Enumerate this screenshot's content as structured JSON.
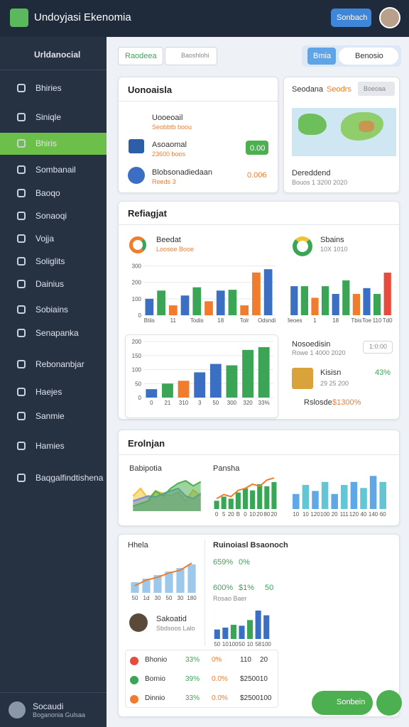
{
  "header": {
    "title": "Undoyjasi Ekenomia",
    "button": "Sonbach"
  },
  "sidebar": {
    "brand": "Urldanocial",
    "items": [
      "Bhiries",
      "Siniqle",
      "Bhiris",
      "Sombanail",
      "Baoqo",
      "Sonaoqi",
      "Vojja",
      "Soliglits",
      "Dainius",
      "Sobiains",
      "Senapanka",
      "Rebonanbjar",
      "Haejes",
      "Sanmie",
      "Hamies",
      "Baqgalfindtishena"
    ],
    "active": 2,
    "user": {
      "name": "Socaudi",
      "role": "Boganonia Gulsaa"
    }
  },
  "toolbar": {
    "tabs": [
      "Raodeea",
      "Baoshlohi"
    ],
    "actions": [
      "Bmia",
      "Benosio"
    ]
  },
  "overview": {
    "title": "Uonoaisla",
    "rows": [
      {
        "name": "Uooeoail",
        "detail": "Seobbtb boou"
      },
      {
        "name": "Asoaomal",
        "detail": "23600 boos",
        "value": "0.00"
      },
      {
        "name": "Blobsonadiedaan",
        "detail": "Reeds 3",
        "value": "0.006"
      }
    ]
  },
  "map": {
    "title": "Seodana",
    "badge": "Seodrs",
    "button": "Boeoaa",
    "footer": "Dereddend",
    "footer_detail": "Bouos  1 3200 2020"
  },
  "reports": {
    "title": "Refiagjat"
  },
  "panel": {
    "title": "Nosoedisin",
    "detail": "Rowe  1 4000 2020",
    "input": "1:0:00",
    "item": "Kisisn",
    "item_detail": "29 25 200",
    "item_value": "43%",
    "footer": "Rslosde",
    "footer_value": "$1300%"
  },
  "analytics": {
    "title": "Erolnjan"
  },
  "summary": {
    "title": "Ruinoiasl Bsaonoch",
    "stats": [
      "659%",
      "0%",
      "600%",
      "$1%",
      "50"
    ],
    "caption": "Rosao Baer",
    "profile": {
      "name": "Sakoatid",
      "detail": "Sbdsoos Lalo"
    },
    "table": [
      [
        "Bhonio",
        "33%",
        "0%",
        "110",
        "20"
      ],
      [
        "Bornio",
        "39%",
        "0.0%",
        "$250010"
      ],
      [
        "Dinnio",
        "33%",
        "0.0%",
        "$2500100"
      ]
    ]
  },
  "fab": "Sonbein",
  "charts": {
    "a": {
      "title": "Beedat",
      "subtitle": "Loosoe Booe",
      "ylim": [
        0,
        350
      ],
      "yticks": [
        0,
        100,
        200,
        300
      ],
      "categories": [
        "Btiis",
        null,
        "11",
        null,
        "Todis",
        null,
        "18",
        null,
        "Tolr",
        null,
        "Odsndis"
      ],
      "values": [
        100,
        150,
        60,
        120,
        170,
        85,
        150,
        155,
        60,
        260,
        280
      ],
      "colors": [
        "#3a6fc4",
        "#3aa655",
        "#f07c2c",
        "#3a6fc4",
        "#3aa655",
        "#f07c2c",
        "#3a6fc4",
        "#3aa655",
        "#f07c2c",
        "#f07c2c",
        "#3a6fc4"
      ]
    },
    "b": {
      "title": "Sbains",
      "subtitle": "10X 1010",
      "categories": [
        "Beoes",
        null,
        "1",
        null,
        "18",
        null,
        "Tbis",
        "Toe",
        "110",
        "Td0"
      ],
      "values": [
        150,
        150,
        90,
        150,
        110,
        180,
        110,
        140,
        110,
        220
      ],
      "colors": [
        "#3a6fc4",
        "#3aa655",
        "#f07c2c",
        "#3aa655",
        "#3a6fc4",
        "#3aa655",
        "#f07c2c",
        "#3a6fc4",
        "#3aa655",
        "#e84a3c"
      ]
    },
    "c": {
      "ylim": [
        0,
        200
      ],
      "yticks": [
        0,
        50,
        100,
        150,
        200
      ],
      "categories": [
        "0",
        "21",
        "310",
        "3",
        "50",
        "300",
        "320",
        "33%"
      ],
      "values": [
        30,
        50,
        60,
        90,
        120,
        115,
        170,
        180
      ],
      "colors": [
        "#3a6fc4",
        "#3aa655",
        "#f07c2c",
        "#3a6fc4",
        "#3a6fc4",
        "#3aa655",
        "#3aa655",
        "#3aa655"
      ]
    },
    "e": {
      "title": "Babipotia",
      "series": [
        {
          "color": "#f2c230",
          "fill": true,
          "values": [
            30,
            45,
            25,
            40,
            35,
            30,
            38,
            20,
            42,
            30
          ]
        },
        {
          "color": "#6a8ed8",
          "fill": true,
          "values": [
            20,
            25,
            30,
            28,
            35,
            40,
            45,
            30,
            25,
            35
          ]
        },
        {
          "color": "#4caf50",
          "fill": true,
          "values": [
            10,
            15,
            20,
            40,
            30,
            45,
            55,
            60,
            50,
            58
          ]
        }
      ],
      "ymax": 65
    },
    "f": {
      "title": "Pansha",
      "categories": [
        "0",
        "5",
        "20",
        "B",
        "0",
        "10",
        "20",
        "80",
        "20"
      ],
      "values": [
        20,
        30,
        25,
        40,
        50,
        45,
        60,
        55,
        65
      ],
      "colors": [
        "#3aa655",
        "#3aa655",
        "#3aa655",
        "#3aa655",
        "#3aa655",
        "#3aa655",
        "#3aa655",
        "#3aa655",
        "#3aa655"
      ],
      "series": [
        {
          "color": "#f07c2c",
          "values": [
            25,
            35,
            30,
            45,
            50,
            60,
            55,
            70,
            75
          ]
        }
      ]
    },
    "g": {
      "categories": [
        "10",
        "10",
        "120",
        "100",
        "20",
        "111",
        "120",
        "40",
        "140",
        "60"
      ],
      "values": [
        25,
        40,
        30,
        45,
        25,
        40,
        45,
        35,
        55,
        45
      ],
      "colors": [
        "#5fa8e8",
        "#62c6d4",
        "#5fa8e8",
        "#62c6d4",
        "#5fa8e8",
        "#62c6d4",
        "#5fa8e8",
        "#62c6d4",
        "#5fa8e8",
        "#62c6d4"
      ]
    },
    "h": {
      "title": "Hhela",
      "categories": [
        "50",
        "1d",
        "30",
        "50",
        "30",
        "180"
      ],
      "values": [
        15,
        20,
        25,
        30,
        35,
        40
      ],
      "colors": [
        "#9cc8ec",
        "#9cc8ec",
        "#9cc8ec",
        "#9cc8ec",
        "#9cc8ec",
        "#9cc8ec"
      ],
      "series": [
        {
          "color": "#f07c2c",
          "values": [
            10,
            18,
            22,
            28,
            32,
            42
          ]
        }
      ]
    },
    "i": {
      "categories": [
        "50",
        "10",
        "100",
        "50",
        "10",
        "58",
        "100"
      ],
      "values": [
        10,
        12,
        15,
        14,
        20,
        30,
        25
      ],
      "colors": [
        "#3a6fc4",
        "#3a6fc4",
        "#3aa655",
        "#3a6fc4",
        "#3aa655",
        "#3a6fc4",
        "#3a6fc4"
      ]
    }
  }
}
